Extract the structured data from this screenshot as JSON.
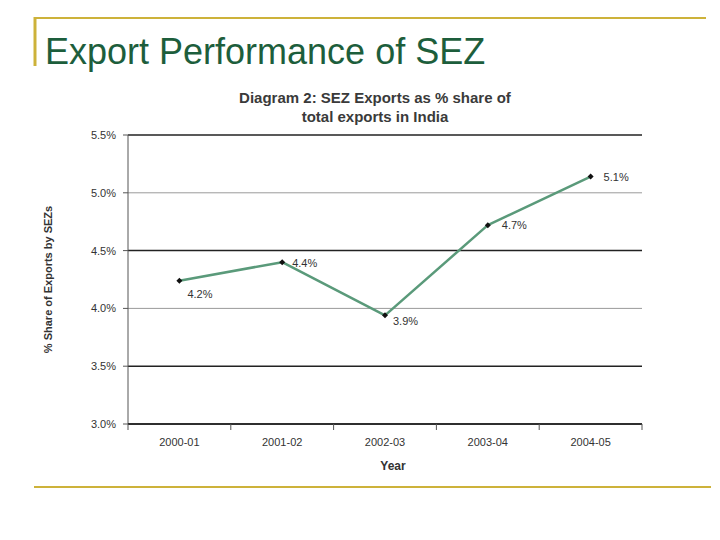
{
  "page": {
    "title": "Export Performance of SEZ"
  },
  "chart_data": {
    "type": "line",
    "title": "Diagram 2: SEZ Exports as % share of total exports in India",
    "x_label": "Year",
    "y_label": "% Share of Exports by SEZs",
    "categories": [
      "2000-01",
      "2001-02",
      "2002-03",
      "2003-04",
      "2004-05"
    ],
    "values": [
      4.24,
      4.4,
      3.94,
      4.72,
      5.14
    ],
    "value_labels": [
      "4.2%",
      "4.4%",
      "3.9%",
      "4.7%",
      "5.1%"
    ],
    "color": "#5a9a7a",
    "marker": "diamond",
    "ylim": [
      3.0,
      5.5
    ],
    "yticks": [
      {
        "value": 3.0,
        "label": "3.0%"
      },
      {
        "value": 3.5,
        "label": "3.5%"
      },
      {
        "value": 4.0,
        "label": "4.0%"
      },
      {
        "value": 4.5,
        "label": "4.5%"
      },
      {
        "value": 5.0,
        "label": "5.0%"
      },
      {
        "value": 5.5,
        "label": "5.5%"
      }
    ],
    "grid": true,
    "data_labels": true
  }
}
